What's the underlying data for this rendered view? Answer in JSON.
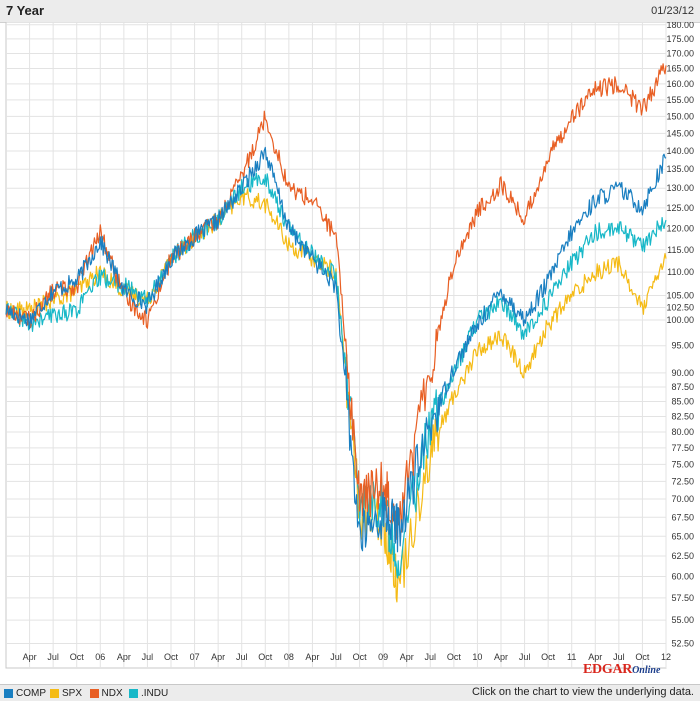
{
  "header": {
    "title": "7 Year",
    "date": "01/23/12"
  },
  "footer": {
    "note": "Click on the chart to view the underlying data."
  },
  "logo": {
    "main": "EDGAR",
    "sub": "Online"
  },
  "chart_data": {
    "type": "line",
    "x_ticks": [
      "Apr",
      "Jul",
      "Oct",
      "06",
      "Apr",
      "Jul",
      "Oct",
      "07",
      "Apr",
      "Jul",
      "Oct",
      "08",
      "Apr",
      "Jul",
      "Oct",
      "09",
      "Apr",
      "Jul",
      "Oct",
      "10",
      "Apr",
      "Jul",
      "Oct",
      "11",
      "Apr",
      "Jul",
      "Oct",
      "12"
    ],
    "y_ticks": [
      "52.50",
      "55.00",
      "57.50",
      "60.00",
      "62.50",
      "65.00",
      "67.50",
      "70.00",
      "72.50",
      "75.00",
      "77.50",
      "80.00",
      "82.50",
      "85.00",
      "87.50",
      "90.00",
      "95.00",
      "100.00",
      "102.50",
      "105.00",
      "110.00",
      "115.00",
      "120.00",
      "125.00",
      "130.00",
      "135.00",
      "140.00",
      "145.00",
      "150.00",
      "155.00",
      "160.00",
      "165.00",
      "170.00",
      "175.00",
      "180.00"
    ],
    "y_scale": "log",
    "ylim": [
      50,
      181
    ],
    "x_range": [
      "2005-01",
      "2012-01"
    ],
    "grid": true,
    "x": [
      "2005-01",
      "2005-04",
      "2005-07",
      "2005-10",
      "2006-01",
      "2006-04",
      "2006-07",
      "2006-10",
      "2007-01",
      "2007-04",
      "2007-07",
      "2007-10",
      "2008-01",
      "2008-04",
      "2008-07",
      "2008-10",
      "2009-01",
      "2009-03",
      "2009-07",
      "2009-10",
      "2010-01",
      "2010-04",
      "2010-07",
      "2010-10",
      "2011-01",
      "2011-04",
      "2011-07",
      "2011-10",
      "2012-01"
    ],
    "series": [
      {
        "name": "COMP",
        "color": "#1a7fc1",
        "values": [
          102,
          100,
          106,
          108,
          117,
          106,
          103,
          113,
          118,
          122,
          130,
          140,
          120,
          113,
          107,
          65,
          68,
          66,
          81,
          91,
          99,
          106,
          100,
          108,
          119,
          127,
          130,
          125,
          138
        ]
      },
      {
        "name": "SPX",
        "color": "#f5bb16",
        "values": [
          102,
          102,
          104,
          106,
          110,
          106,
          104,
          113,
          118,
          122,
          128,
          126,
          116,
          113,
          110,
          68,
          67,
          59,
          77,
          86,
          94,
          97,
          90,
          99,
          105,
          110,
          112,
          102,
          113
        ]
      },
      {
        "name": "NDX",
        "color": "#e85f24",
        "values": [
          102,
          100,
          106,
          107,
          119,
          105,
          100,
          113,
          118,
          122,
          133,
          150,
          130,
          127,
          118,
          70,
          72,
          67,
          91,
          112,
          124,
          131,
          122,
          138,
          150,
          158,
          160,
          152,
          166
        ]
      },
      {
        "name": ".INDU",
        "color": "#18b8c8",
        "values": [
          102,
          99,
          101,
          102,
          109,
          107,
          104,
          113,
          118,
          122,
          130,
          133,
          120,
          114,
          109,
          70,
          69,
          62,
          81,
          90,
          100,
          104,
          97,
          104,
          112,
          119,
          120,
          116,
          122
        ]
      }
    ]
  }
}
